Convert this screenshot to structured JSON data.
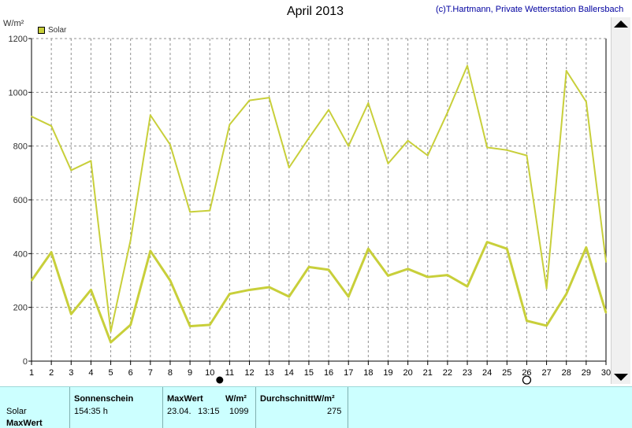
{
  "header": {
    "title": "April 2013",
    "copyright": "(c)T.Hartmann, Private Wetterstation Ballersbach",
    "unit": "W/m²",
    "legend_label": "Solar"
  },
  "colors": {
    "series": "#c8cf3a",
    "axis": "#000000",
    "grid": "#909090"
  },
  "chart_data": {
    "type": "line",
    "title": "April 2013",
    "ylabel": "W/m²",
    "ylim": [
      0,
      1200
    ],
    "y_ticks": [
      0,
      200,
      400,
      600,
      800,
      1000,
      1200
    ],
    "xlim": [
      1,
      30
    ],
    "x": [
      1,
      2,
      3,
      4,
      5,
      6,
      7,
      8,
      9,
      10,
      11,
      12,
      13,
      14,
      15,
      16,
      17,
      18,
      19,
      20,
      21,
      22,
      23,
      24,
      25,
      26,
      27,
      28,
      29,
      30
    ],
    "grid": true,
    "legend": "top-left",
    "series": [
      {
        "name": "Solar",
        "role": "max",
        "values": [
          910,
          875,
          710,
          745,
          110,
          450,
          915,
          805,
          555,
          560,
          880,
          970,
          980,
          720,
          830,
          935,
          800,
          960,
          735,
          820,
          765,
          925,
          1099,
          795,
          785,
          765,
          270,
          1080,
          965,
          370
        ]
      },
      {
        "name": "Solar",
        "role": "average",
        "values": [
          300,
          405,
          175,
          265,
          70,
          135,
          410,
          300,
          130,
          135,
          250,
          265,
          275,
          240,
          350,
          340,
          240,
          418,
          318,
          343,
          313,
          320,
          278,
          443,
          418,
          150,
          132,
          250,
          423,
          180
        ]
      }
    ],
    "markers": [
      {
        "day": 10.5,
        "symbol": "new-moon"
      },
      {
        "day": 26,
        "symbol": "full-moon"
      }
    ]
  },
  "stats": {
    "row_label_solar": "Solar",
    "row_label_maxwert": "MaxWert",
    "sunshine_header": "Sonnenschein",
    "sunshine_value": "154:35 h",
    "max_header": "MaxWert",
    "max_unit": "W/m²",
    "max_date": "23.04.",
    "max_time": "13:15",
    "max_value": "1099",
    "avg_header": "DurchschnittW/m²",
    "avg_value": "275"
  }
}
